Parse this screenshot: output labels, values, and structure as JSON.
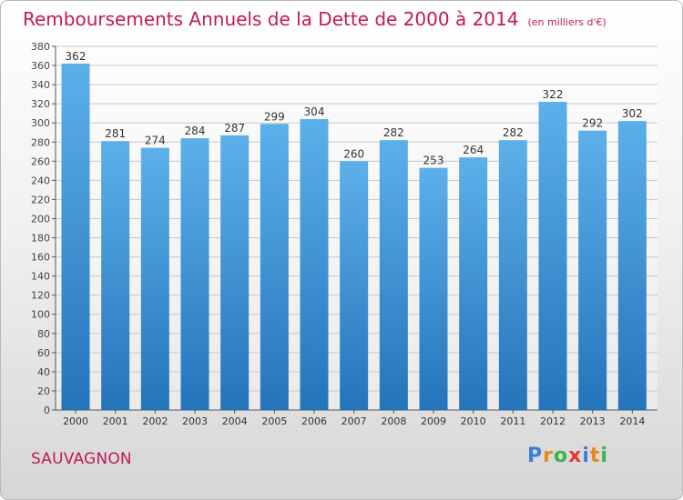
{
  "chart_data": {
    "type": "bar",
    "title": "Remboursements Annuels de la Dette de 2000 à 2014",
    "unit": "(en milliers d'€)",
    "categories": [
      "2000",
      "2001",
      "2002",
      "2003",
      "2004",
      "2005",
      "2006",
      "2007",
      "2008",
      "2009",
      "2010",
      "2011",
      "2012",
      "2013",
      "2014"
    ],
    "values": [
      362,
      281,
      274,
      284,
      287,
      299,
      304,
      260,
      282,
      253,
      264,
      282,
      322,
      292,
      302
    ],
    "ylim": [
      0,
      380
    ],
    "ytick_step": 20,
    "grid": true,
    "xlabel": "",
    "ylabel": ""
  },
  "commune": "SAUVAGNON",
  "logo": {
    "p": "P",
    "r": "r",
    "o": "o",
    "x": "x",
    "i": "i",
    "t": "t",
    "i2": "i"
  },
  "colors": {
    "title": "#c2185b",
    "bar_light": "#5aaee8",
    "bar_dark": "#2678bf"
  }
}
